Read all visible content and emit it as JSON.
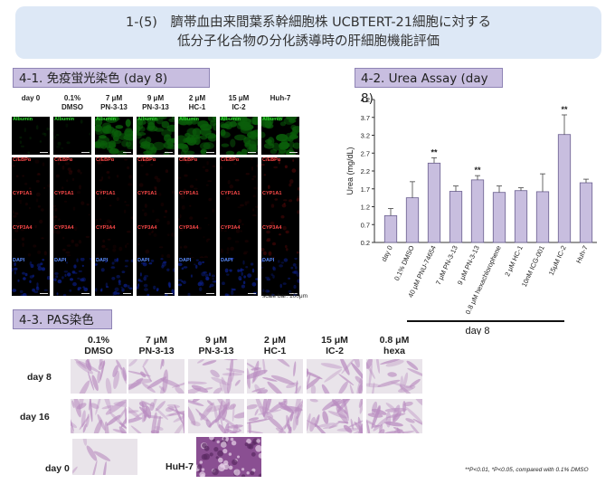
{
  "title": {
    "line1": "1-(5)　臍帯血由来間葉系幹細胞株 UCBTERT-21細胞に対する",
    "line2": "低分子化合物の分化誘導時の肝細胞機能評価"
  },
  "section_41": {
    "label": "4-1. 免疫蛍光染色 (day 8)",
    "columns": [
      {
        "line1": "day 0",
        "line2": ""
      },
      {
        "line1": "0.1%",
        "line2": "DMSO"
      },
      {
        "line1": "7 μM",
        "line2": "PN-3-13"
      },
      {
        "line1": "9 μM",
        "line2": "PN-3-13"
      },
      {
        "line1": "2 μM",
        "line2": "HC-1"
      },
      {
        "line1": "15 μM",
        "line2": "IC-2"
      },
      {
        "line1": "Huh-7",
        "line2": ""
      }
    ],
    "rows": [
      {
        "label": "Albumin",
        "color": "#2bd42b",
        "fill": "#0a5e0a"
      },
      {
        "label": "C/EBPα",
        "color": "#ff4a4a",
        "fill": "#6a0b0b"
      },
      {
        "label": "CYP1A1",
        "color": "#ff4a4a",
        "fill": "#5a0808"
      },
      {
        "label": "CYP3A4",
        "color": "#ff4a4a",
        "fill": "#580808"
      },
      {
        "label": "DAPI",
        "color": "#5a8cff",
        "fill": "#0b1f8a"
      }
    ],
    "scale_bar": "scale bar: 100μm"
  },
  "section_42": {
    "label": "4-2. Urea Assay (day 8)",
    "bracket_label": "day 8"
  },
  "chart_data": {
    "type": "bar",
    "title": "",
    "xlabel": "",
    "ylabel": "Urea (mg/dL)",
    "ylim": [
      0.2,
      4.2
    ],
    "yticks": [
      0.2,
      0.7,
      1.2,
      1.7,
      2.2,
      2.7,
      3.2,
      3.7,
      4.2
    ],
    "categories": [
      "day 0",
      "0.1% DMSO",
      "40 μM PNU-74654",
      "7 μM PN-3-13",
      "9 μM PN-3-13",
      "0.8 μM hexachlorophene",
      "2 μM HC-1",
      "10nM ICG-001",
      "15μM IC-2",
      "Huh-7"
    ],
    "values": [
      0.95,
      1.45,
      2.42,
      1.63,
      1.95,
      1.6,
      1.65,
      1.62,
      3.22,
      1.87
    ],
    "errors": [
      0.2,
      0.45,
      0.15,
      0.15,
      0.12,
      0.18,
      0.08,
      0.5,
      0.55,
      0.1
    ],
    "annotations": [
      "",
      "",
      "**",
      "",
      "**",
      "",
      "",
      "",
      "**",
      ""
    ],
    "bar_color": "#c8bedf",
    "grid": false,
    "legend": "none"
  },
  "section_43": {
    "label": "4-3. PAS染色",
    "columns": [
      {
        "line1": "0.1%",
        "line2": "DMSO"
      },
      {
        "line1": "7 μM",
        "line2": "PN-3-13"
      },
      {
        "line1": "9 μM",
        "line2": "PN-3-13"
      },
      {
        "line1": "2 μM",
        "line2": "HC-1"
      },
      {
        "line1": "15 μM",
        "line2": "IC-2"
      },
      {
        "line1": "0.8 μM",
        "line2": "hexa"
      }
    ],
    "rows": [
      {
        "label": "day 8"
      },
      {
        "label": "day 16"
      }
    ],
    "extra": [
      {
        "label": "day 0"
      },
      {
        "label": "HuH-7"
      }
    ]
  },
  "footnote": "**P<0.01, *P<0.05, compared with 0.1% DMSO"
}
